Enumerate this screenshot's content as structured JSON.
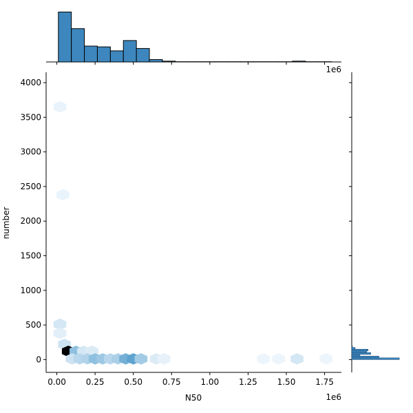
{
  "chart_data": {
    "type": "hexbin-jointplot",
    "xlabel": "N50",
    "ylabel": "number",
    "x_offset_text": "1e6",
    "y_marg_offset_text": "1e6",
    "x_range": [
      -70000,
      1860000
    ],
    "y_range": [
      -185,
      4150
    ],
    "x_ticks": [
      0.0,
      0.25,
      0.5,
      0.75,
      1.0,
      1.25,
      1.5,
      1.75
    ],
    "x_tick_labels": [
      "0.00",
      "0.25",
      "0.50",
      "0.75",
      "1.00",
      "1.25",
      "1.50",
      "1.75"
    ],
    "y_ticks": [
      0,
      500,
      1000,
      1500,
      2000,
      2500,
      3000,
      3500,
      4000
    ],
    "y_tick_labels": [
      "0",
      "500",
      "1000",
      "1500",
      "2000",
      "2500",
      "3000",
      "3500",
      "4000"
    ],
    "hexbins": [
      {
        "x": 20000,
        "y": 3650,
        "level": 0.04
      },
      {
        "x": 40000,
        "y": 2380,
        "level": 0.04
      },
      {
        "x": 20000,
        "y": 510,
        "level": 0.1
      },
      {
        "x": 20000,
        "y": 380,
        "level": 0.06
      },
      {
        "x": 50000,
        "y": 220,
        "level": 0.12
      },
      {
        "x": 75000,
        "y": 120,
        "level": 1.0
      },
      {
        "x": 125000,
        "y": 120,
        "level": 0.3
      },
      {
        "x": 175000,
        "y": 120,
        "level": 0.1
      },
      {
        "x": 230000,
        "y": 120,
        "level": 0.08
      },
      {
        "x": 100000,
        "y": 10,
        "level": 0.12
      },
      {
        "x": 150000,
        "y": 10,
        "level": 0.18
      },
      {
        "x": 200000,
        "y": 10,
        "level": 0.2
      },
      {
        "x": 250000,
        "y": 10,
        "level": 0.3
      },
      {
        "x": 300000,
        "y": 10,
        "level": 0.26
      },
      {
        "x": 350000,
        "y": 10,
        "level": 0.18
      },
      {
        "x": 400000,
        "y": 10,
        "level": 0.22
      },
      {
        "x": 450000,
        "y": 10,
        "level": 0.38
      },
      {
        "x": 500000,
        "y": 10,
        "level": 0.44
      },
      {
        "x": 550000,
        "y": 10,
        "level": 0.24
      },
      {
        "x": 650000,
        "y": 10,
        "level": 0.08
      },
      {
        "x": 700000,
        "y": 10,
        "level": 0.05
      },
      {
        "x": 1350000,
        "y": 10,
        "level": 0.03
      },
      {
        "x": 1450000,
        "y": 10,
        "level": 0.03
      },
      {
        "x": 1570000,
        "y": 10,
        "level": 0.1
      },
      {
        "x": 1760000,
        "y": 10,
        "level": 0.03
      }
    ],
    "x_marginal_hist": {
      "bin_width": 85000,
      "bins": [
        {
          "x0": 10000,
          "count": 63
        },
        {
          "x0": 95000,
          "count": 42
        },
        {
          "x0": 180000,
          "count": 20
        },
        {
          "x0": 265000,
          "count": 19
        },
        {
          "x0": 350000,
          "count": 14
        },
        {
          "x0": 435000,
          "count": 27
        },
        {
          "x0": 520000,
          "count": 17
        },
        {
          "x0": 605000,
          "count": 3
        },
        {
          "x0": 690000,
          "count": 1
        },
        {
          "x0": 775000,
          "count": 0.3
        },
        {
          "x0": 860000,
          "count": 0.3
        },
        {
          "x0": 945000,
          "count": 0.3
        },
        {
          "x0": 1030000,
          "count": 0.3
        },
        {
          "x0": 1115000,
          "count": 0.3
        },
        {
          "x0": 1200000,
          "count": 0.3
        },
        {
          "x0": 1285000,
          "count": 0.3
        },
        {
          "x0": 1370000,
          "count": 0.3
        },
        {
          "x0": 1455000,
          "count": 0.3
        },
        {
          "x0": 1540000,
          "count": 1
        },
        {
          "x0": 1625000,
          "count": 0.3
        },
        {
          "x0": 1710000,
          "count": 0.3
        }
      ],
      "ymax": 66
    },
    "y_marginal_hist": {
      "bins": [
        {
          "y0": 0,
          "y1": 25,
          "count": 70
        },
        {
          "y0": 25,
          "y1": 50,
          "count": 40
        },
        {
          "y0": 50,
          "y1": 75,
          "count": 12
        },
        {
          "y0": 75,
          "y1": 100,
          "count": 28
        },
        {
          "y0": 100,
          "y1": 125,
          "count": 22
        },
        {
          "y0": 125,
          "y1": 150,
          "count": 24
        },
        {
          "y0": 150,
          "y1": 175,
          "count": 5
        },
        {
          "y0": 175,
          "y1": 200,
          "count": 1
        }
      ],
      "xmax": 75
    },
    "colors": {
      "hist_fill": "#3d87be",
      "hex_dark": "#000000",
      "hex_light": "#f7fbff",
      "hex_mid": "#4a98c9"
    }
  }
}
